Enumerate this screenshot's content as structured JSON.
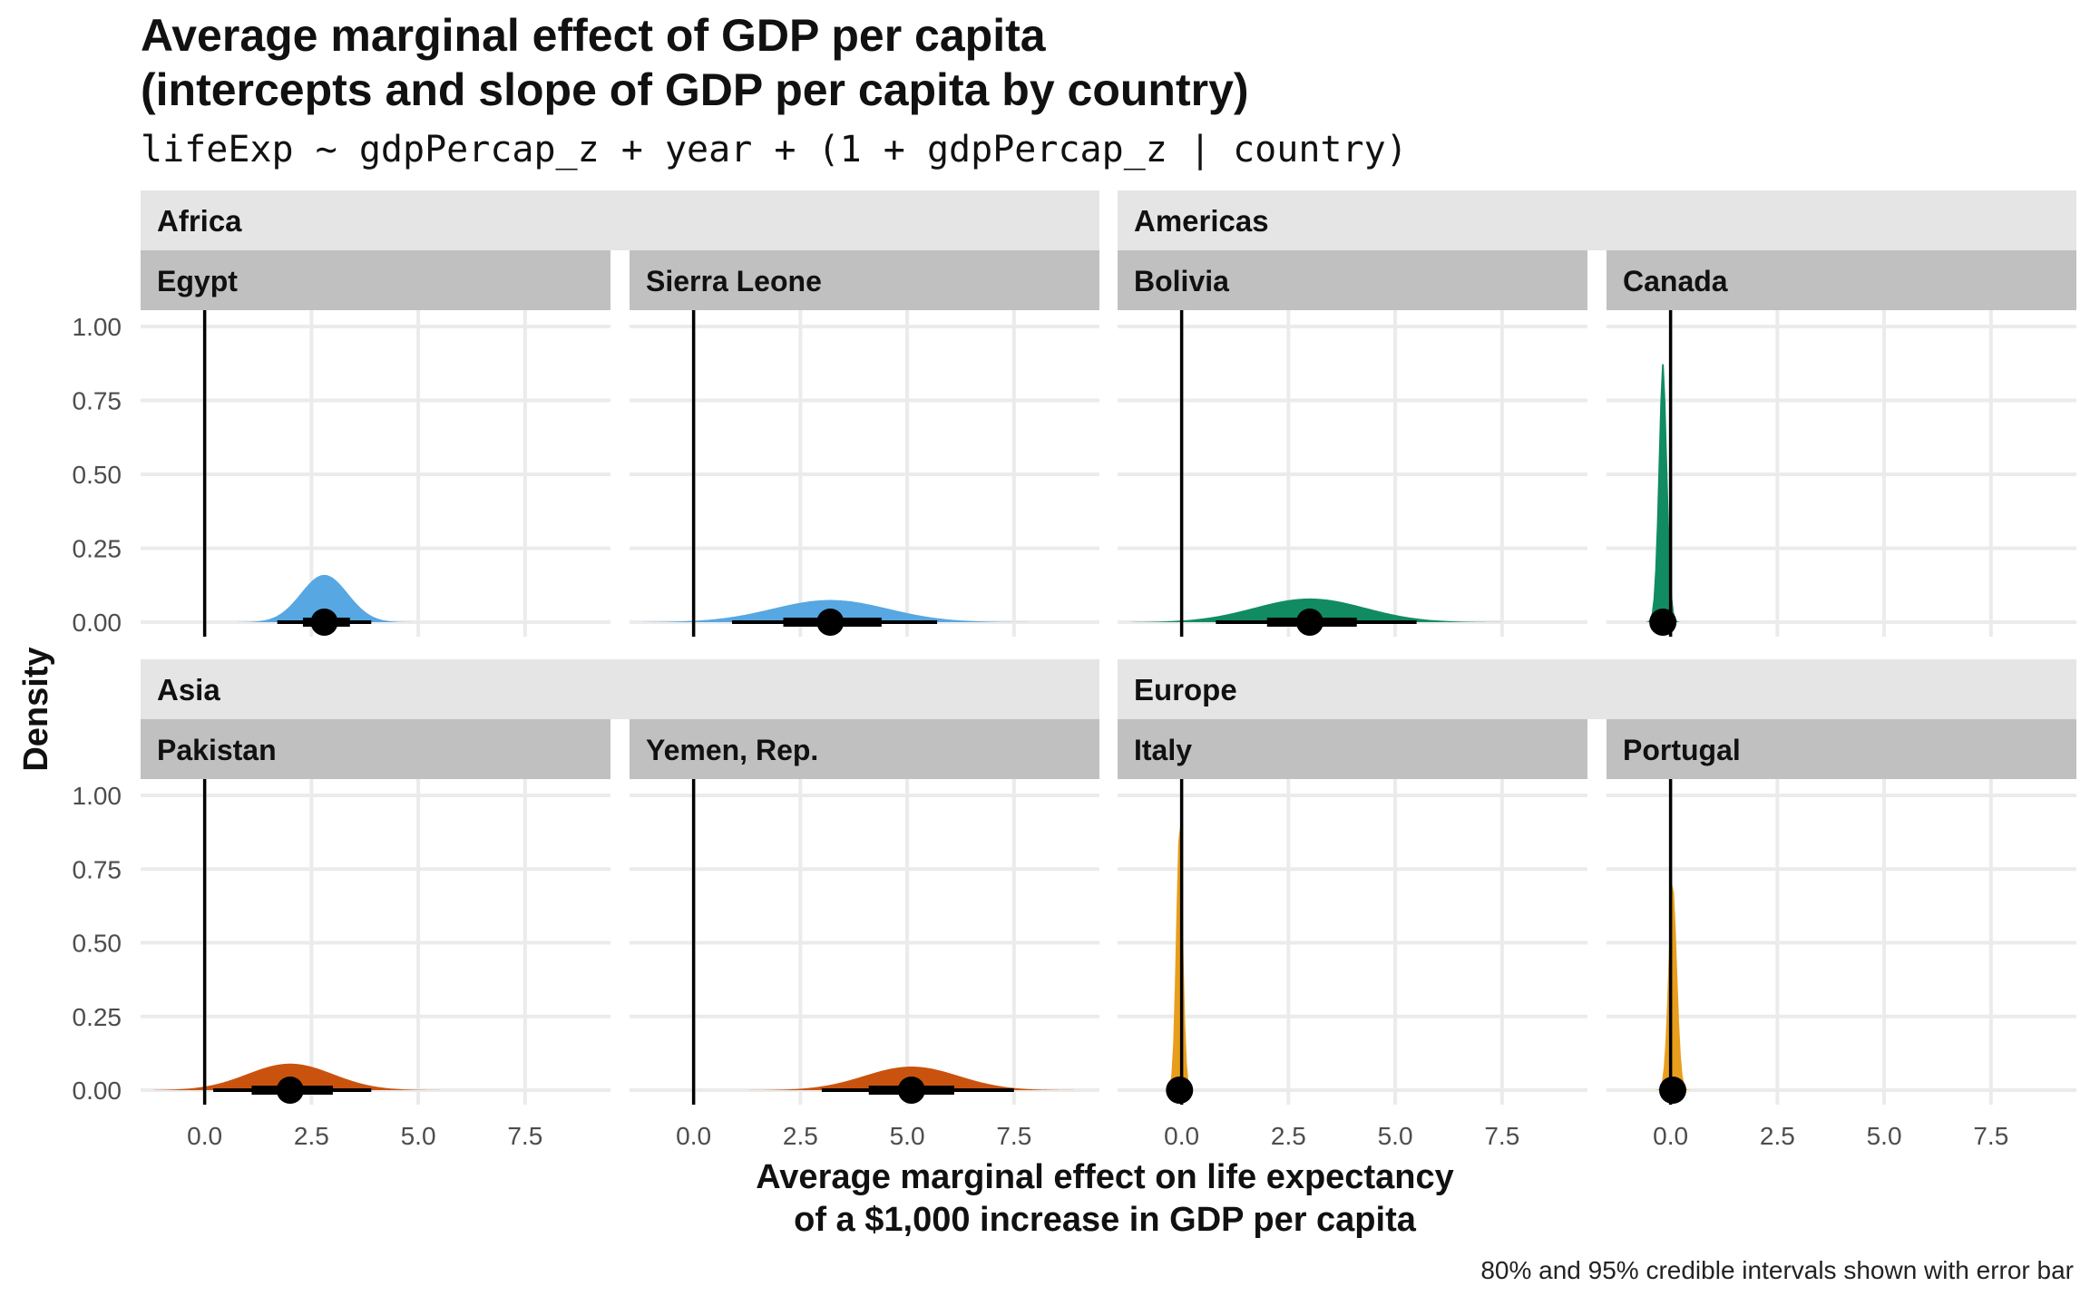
{
  "title_line1": "Average marginal effect of GDP per capita",
  "title_line2": "(intercepts and slope of GDP per capita by country)",
  "subtitle": "lifeExp ~ gdpPercap_z + year + (1 + gdpPercap_z | country)",
  "y_axis_label": "Density",
  "x_axis_label_line1": "Average marginal effect on life expectancy",
  "x_axis_label_line2": "of a $1,000 increase in GDP per capita",
  "caption": "80% and 95% credible intervals shown with error bar",
  "y_tick_labels": [
    "0.00",
    "0.25",
    "0.50",
    "0.75",
    "1.00"
  ],
  "x_tick_labels": [
    "0.0",
    "2.5",
    "5.0",
    "7.5"
  ],
  "colors": {
    "Africa": "#56a7e2",
    "Americas": "#118b62",
    "Asia": "#c9530e",
    "Europe": "#e89e1c",
    "continent_strip": "#e5e5e5",
    "country_strip": "#c0c0c0",
    "gridline": "#ebebeb"
  },
  "chart_data": {
    "type": "area",
    "description_of_marks": "density of posterior, point = median, thick bar = 80% CI, thin bar = 95% CI",
    "xlim": [
      -1.5,
      9.5
    ],
    "ylim": [
      0,
      1
    ],
    "x_breaks": [
      0,
      2.5,
      5,
      7.5
    ],
    "y_breaks": [
      0,
      0.25,
      0.5,
      0.75,
      1
    ],
    "reference_line_x": 0,
    "grid": true,
    "groups": [
      {
        "continent": "Africa",
        "countries": [
          {
            "name": "Egypt",
            "median": 2.8,
            "peak_density": 0.16,
            "sd": 0.55,
            "ci80": [
              2.3,
              3.4
            ],
            "ci95": [
              1.7,
              3.9
            ]
          },
          {
            "name": "Sierra Leone",
            "median": 3.2,
            "peak_density": 0.075,
            "sd": 1.35,
            "ci80": [
              2.1,
              4.4
            ],
            "ci95": [
              0.9,
              5.7
            ]
          }
        ]
      },
      {
        "continent": "Americas",
        "countries": [
          {
            "name": "Bolivia",
            "median": 3.0,
            "peak_density": 0.08,
            "sd": 1.3,
            "ci80": [
              2.0,
              4.1
            ],
            "ci95": [
              0.8,
              5.5
            ]
          },
          {
            "name": "Canada",
            "median": -0.18,
            "peak_density": 0.89,
            "sd": 0.1,
            "ci80": [
              -0.25,
              -0.1
            ],
            "ci95": [
              -0.3,
              -0.05
            ]
          }
        ]
      },
      {
        "continent": "Asia",
        "countries": [
          {
            "name": "Pakistan",
            "median": 2.0,
            "peak_density": 0.09,
            "sd": 1.0,
            "ci80": [
              1.1,
              3.0
            ],
            "ci95": [
              0.2,
              3.9
            ]
          },
          {
            "name": "Yemen, Rep.",
            "median": 5.1,
            "peak_density": 0.08,
            "sd": 1.1,
            "ci80": [
              4.1,
              6.1
            ],
            "ci95": [
              3.0,
              7.5
            ]
          }
        ]
      },
      {
        "continent": "Europe",
        "countries": [
          {
            "name": "Italy",
            "median": -0.05,
            "peak_density": 0.9,
            "sd": 0.08,
            "ci80": [
              -0.1,
              0.02
            ],
            "ci95": [
              -0.15,
              0.06
            ]
          },
          {
            "name": "Portugal",
            "median": 0.05,
            "peak_density": 0.7,
            "sd": 0.1,
            "ci80": [
              -0.02,
              0.12
            ],
            "ci95": [
              -0.1,
              0.18
            ]
          }
        ]
      }
    ]
  }
}
